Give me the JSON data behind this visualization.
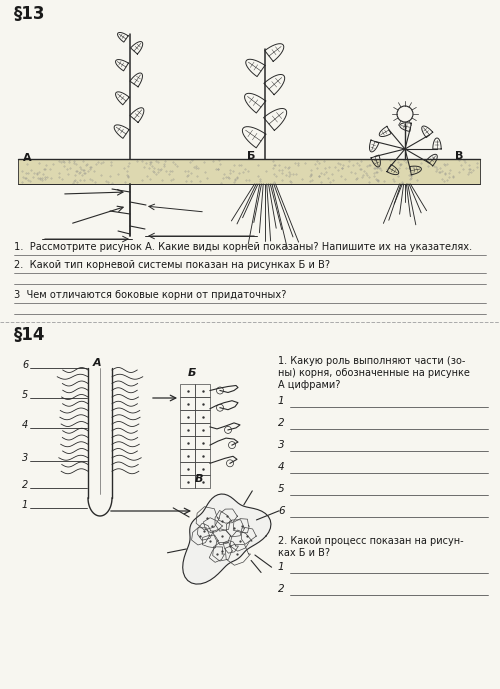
{
  "bg": "#f7f6f0",
  "line_color": "#555555",
  "draw_color": "#2a2a2a",
  "s1_header": "§13",
  "s2_header": "§14",
  "q1_1": "1.  Рассмотрите рисунок А. Какие виды корней показаны? Напишите их на указателях.",
  "q1_2": "2.  Какой тип корневой системы показан на рисунках Б и В?",
  "q1_3": "3  Чем отличаются боковые корни от придаточных?",
  "q2_1a": "1. Какую роль выполняют части (зо-",
  "q2_1b": "ны) корня, обозначенные на рисунке",
  "q2_1c": "А цифрами?",
  "q2_2a": "2. Какой процесс показан на рисун-",
  "q2_2b": "ках Б и В?",
  "nums6": [
    "1",
    "2",
    "3",
    "4",
    "5",
    "6"
  ],
  "nums2": [
    "1",
    "2"
  ],
  "lbl_A": "А",
  "lbl_B": "Б",
  "lbl_V": "В"
}
